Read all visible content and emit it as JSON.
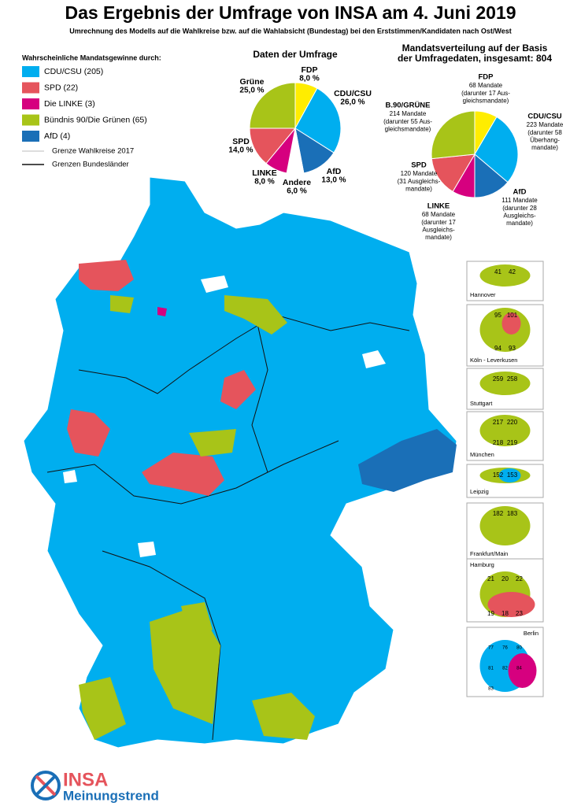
{
  "title": "Das Ergebnis der Umfrage von INSA am 4. Juni 2019",
  "subtitle": "Umrechnung des Modells auf die Wahlkreise bzw. auf die Wahlabsicht (Bundestag) bei den Erststimmen/Kandidaten nach Ost/West",
  "legend": {
    "title": "Wahrscheinliche Mandatsgewinne durch:",
    "items": [
      {
        "label": "CDU/CSU (205)",
        "color": "#00aeef"
      },
      {
        "label": "SPD (22)",
        "color": "#e5545c"
      },
      {
        "label": "Die LINKE (3)",
        "color": "#d6007f"
      },
      {
        "label": "Bündnis 90/Die Grünen (65)",
        "color": "#a8c418"
      },
      {
        "label": "AfD (4)",
        "color": "#1a6fb7"
      }
    ],
    "lines": [
      "Grenze Wahlkreise 2017",
      "Grenzen Bundesländer"
    ]
  },
  "chart_data": [
    {
      "type": "pie",
      "title": [
        "Daten der Umfrage"
      ],
      "categories": [
        "FDP",
        "CDU/CSU",
        "AfD",
        "Andere",
        "LINKE",
        "SPD",
        "Grüne"
      ],
      "values": [
        8,
        26,
        13,
        6,
        8,
        14,
        25
      ],
      "value_labels": [
        "8,0 %",
        "26,0 %",
        "13,0 %",
        "6,0 %",
        "8,0 %",
        "14,0 %",
        "25,0 %"
      ],
      "colors": [
        "#ffed00",
        "#00aeef",
        "#1a6fb7",
        "#ffffff",
        "#d6007f",
        "#e5545c",
        "#a8c418"
      ]
    },
    {
      "type": "pie",
      "title": [
        "Mandatsverteilung auf der Basis",
        "der Umfragedaten, insgesamt: 804"
      ],
      "categories": [
        "FDP",
        "CDU/CSU",
        "AfD",
        "LINKE",
        "SPD",
        "B.90/GRÜNE"
      ],
      "values": [
        68,
        223,
        111,
        68,
        120,
        214
      ],
      "value_labels": [
        "68 Mandate",
        "223 Mandate",
        "111 Mandate",
        "68 Mandate",
        "120 Mandate",
        "214 Mandate"
      ],
      "notes": [
        [
          "(darunter 17 Aus-",
          "gleichsmandate)"
        ],
        [
          "(darunter 58",
          "Überhang-",
          "mandate)"
        ],
        [
          "(darunter 28",
          "Ausgleichs-",
          "mandate)"
        ],
        [
          "(darunter 17",
          "Ausgleichs-",
          "mandate)"
        ],
        [
          "(31 Ausgleichs-",
          "mandate)"
        ],
        [
          "(darunter 55 Aus-",
          "gleichsmandate)"
        ]
      ],
      "colors": [
        "#ffed00",
        "#00aeef",
        "#1a6fb7",
        "#d6007f",
        "#e5545c",
        "#a8c418"
      ]
    }
  ],
  "insets": [
    {
      "name": "Hannover",
      "numbers": [
        "41",
        "42"
      ]
    },
    {
      "name": "Köln -  Leverkusen",
      "numbers": [
        "95",
        "101",
        "94",
        "93"
      ]
    },
    {
      "name": "Stuttgart",
      "numbers": [
        "259",
        "258"
      ]
    },
    {
      "name": "München",
      "numbers": [
        "217",
        "220",
        "218",
        "219"
      ]
    },
    {
      "name": "Leipzig",
      "numbers": [
        "152",
        "153"
      ]
    },
    {
      "name": "Frankfurt/Main",
      "numbers": [
        "182",
        "183"
      ]
    },
    {
      "name": "Hamburg",
      "numbers": [
        "21",
        "20",
        "22",
        "19",
        "18",
        "23"
      ]
    },
    {
      "name": "Berlin",
      "numbers": [
        "77",
        "76",
        "80",
        "81",
        "82",
        "84",
        "83"
      ]
    }
  ],
  "logo": {
    "brand": "INSA",
    "tagline": "Meinungstrend"
  }
}
